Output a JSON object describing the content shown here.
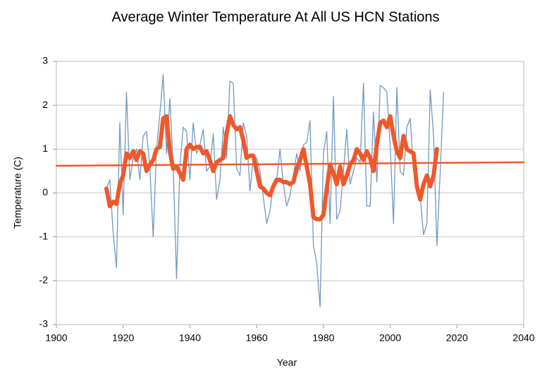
{
  "chart_data": {
    "type": "line",
    "title": "Average Winter Temperature At All US HCN Stations",
    "xlabel": "Year",
    "ylabel": "Temperature (C)",
    "xlim": [
      1900,
      2040
    ],
    "xticks": [
      1900,
      1920,
      1940,
      1960,
      1980,
      2000,
      2020,
      2040
    ],
    "ylim": [
      -3,
      3
    ],
    "yticks": [
      -3,
      -2,
      -1,
      0,
      1,
      2,
      3
    ],
    "grid": true,
    "series": [
      {
        "color": "#6f99c2",
        "x": [
          1915,
          1916,
          1917,
          1918,
          1919,
          1920,
          1921,
          1922,
          1923,
          1924,
          1925,
          1926,
          1927,
          1928,
          1929,
          1930,
          1931,
          1932,
          1933,
          1934,
          1935,
          1936,
          1937,
          1938,
          1939,
          1940,
          1941,
          1942,
          1943,
          1944,
          1945,
          1946,
          1947,
          1948,
          1949,
          1950,
          1951,
          1952,
          1953,
          1954,
          1955,
          1956,
          1957,
          1958,
          1959,
          1960,
          1961,
          1962,
          1963,
          1964,
          1965,
          1966,
          1967,
          1968,
          1969,
          1970,
          1971,
          1972,
          1973,
          1974,
          1975,
          1976,
          1977,
          1978,
          1979,
          1980,
          1981,
          1982,
          1983,
          1984,
          1985,
          1986,
          1987,
          1988,
          1989,
          1990,
          1991,
          1992,
          1993,
          1994,
          1995,
          1996,
          1997,
          1998,
          1999,
          2000,
          2001,
          2002,
          2003,
          2004,
          2005,
          2006,
          2007,
          2008,
          2009,
          2010,
          2011,
          2012,
          2013,
          2014,
          2015,
          2016
        ],
        "values": [
          0.1,
          0.3,
          -0.9,
          -1.7,
          1.6,
          -0.5,
          2.3,
          0.3,
          0.8,
          1.0,
          0.3,
          1.3,
          1.4,
          0.6,
          -1.0,
          1.0,
          1.8,
          2.7,
          0.9,
          2.15,
          0.6,
          -1.95,
          0.6,
          1.5,
          1.4,
          0.3,
          1.6,
          0.9,
          1.1,
          1.45,
          0.5,
          0.6,
          1.35,
          -0.15,
          0.3,
          1.5,
          0.8,
          2.55,
          2.5,
          0.55,
          0.4,
          1.6,
          1.3,
          0.05,
          0.8,
          0.8,
          0.5,
          -0.1,
          -0.7,
          -0.4,
          0.2,
          0.3,
          1.0,
          0.2,
          -0.3,
          -0.05,
          0.4,
          0.9,
          0.5,
          1.1,
          1.15,
          1.65,
          -1.2,
          -1.6,
          -2.6,
          0.9,
          1.4,
          -0.7,
          2.2,
          -0.6,
          -0.4,
          0.5,
          1.45,
          0.2,
          0.5,
          0.8,
          0.7,
          2.5,
          -0.3,
          -0.3,
          1.85,
          0.25,
          2.45,
          2.4,
          2.3,
          1.1,
          -0.7,
          2.4,
          0.5,
          0.4,
          1.5,
          1.7,
          0.5,
          0.2,
          -0.1,
          -0.95,
          -0.7,
          2.35,
          1.3,
          -1.2,
          0.5,
          2.3
        ]
      },
      {
        "color": "#f0582a",
        "x": [
          1915,
          1916,
          1917,
          1918,
          1919,
          1920,
          1921,
          1922,
          1923,
          1924,
          1925,
          1926,
          1927,
          1928,
          1929,
          1930,
          1931,
          1932,
          1933,
          1934,
          1935,
          1936,
          1937,
          1938,
          1939,
          1940,
          1941,
          1942,
          1943,
          1944,
          1945,
          1946,
          1947,
          1948,
          1949,
          1950,
          1951,
          1952,
          1953,
          1954,
          1955,
          1956,
          1957,
          1958,
          1959,
          1960,
          1961,
          1962,
          1963,
          1964,
          1965,
          1966,
          1967,
          1968,
          1969,
          1970,
          1971,
          1972,
          1973,
          1974,
          1975,
          1976,
          1977,
          1978,
          1979,
          1980,
          1981,
          1982,
          1983,
          1984,
          1985,
          1986,
          1987,
          1988,
          1989,
          1990,
          1991,
          1992,
          1993,
          1994,
          1995,
          1996,
          1997,
          1998,
          1999,
          2000,
          2001,
          2002,
          2003,
          2004,
          2005,
          2006,
          2007,
          2008,
          2009,
          2010,
          2011,
          2012,
          2013,
          2014
        ],
        "values": [
          0.1,
          -0.3,
          -0.2,
          -0.25,
          0.2,
          0.4,
          0.9,
          0.8,
          0.95,
          0.75,
          0.95,
          0.9,
          0.5,
          0.65,
          0.75,
          1.0,
          1.05,
          1.7,
          1.75,
          0.95,
          0.55,
          0.6,
          0.45,
          0.3,
          1.0,
          1.1,
          1.0,
          1.05,
          1.05,
          0.9,
          0.95,
          0.75,
          0.5,
          0.7,
          0.75,
          0.8,
          1.35,
          1.75,
          1.55,
          1.45,
          1.5,
          1.2,
          0.8,
          0.85,
          0.85,
          0.5,
          0.15,
          0.1,
          0.0,
          -0.05,
          0.15,
          0.3,
          0.3,
          0.25,
          0.25,
          0.2,
          0.25,
          0.55,
          0.75,
          1.0,
          0.6,
          0.2,
          -0.55,
          -0.6,
          -0.6,
          -0.5,
          0.1,
          0.65,
          0.45,
          0.2,
          0.6,
          0.2,
          0.4,
          0.65,
          0.75,
          1.0,
          0.9,
          0.75,
          0.95,
          0.8,
          0.5,
          1.1,
          1.6,
          1.65,
          1.5,
          1.75,
          1.3,
          0.95,
          0.8,
          1.3,
          1.0,
          0.95,
          0.9,
          0.15,
          -0.15,
          0.2,
          0.4,
          0.15,
          0.4,
          1.0
        ]
      },
      {
        "color": "#ee5a2e",
        "x": [
          1900,
          2040
        ],
        "values": [
          0.62,
          0.7
        ]
      }
    ]
  }
}
